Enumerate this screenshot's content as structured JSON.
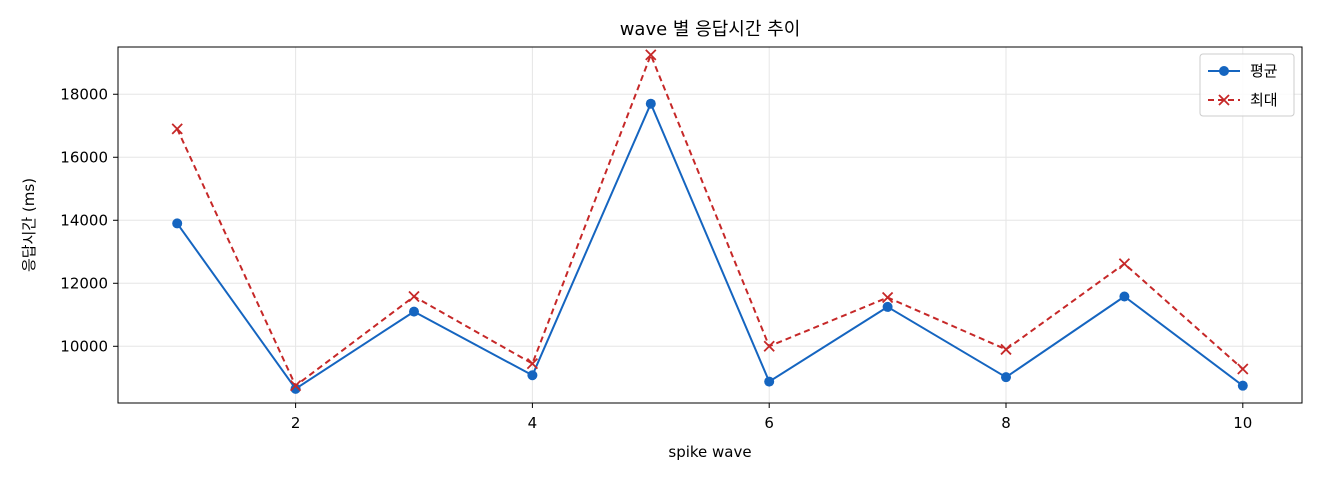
{
  "chart_data": {
    "type": "line",
    "title": "wave 별 응답시간 추이",
    "xlabel": "spike wave",
    "ylabel": "응답시간 (ms)",
    "x": [
      1,
      2,
      3,
      4,
      5,
      6,
      7,
      8,
      9,
      10
    ],
    "xlim": [
      0.5,
      10.5
    ],
    "ylim": [
      8200,
      19500
    ],
    "xticks": [
      2,
      4,
      6,
      8,
      10
    ],
    "yticks": [
      10000,
      12000,
      14000,
      16000,
      18000
    ],
    "grid": true,
    "legend_position": "top-right",
    "series": [
      {
        "name": "평균",
        "values": [
          13900,
          8650,
          11100,
          9080,
          17700,
          8880,
          11250,
          9020,
          11580,
          8750
        ],
        "color": "#1565c0",
        "line_style": "solid",
        "marker": "circle"
      },
      {
        "name": "최대",
        "values": [
          16900,
          8750,
          11580,
          9450,
          19250,
          10000,
          11550,
          9900,
          12620,
          9280
        ],
        "color": "#c62828",
        "line_style": "dashed",
        "marker": "x"
      }
    ]
  }
}
